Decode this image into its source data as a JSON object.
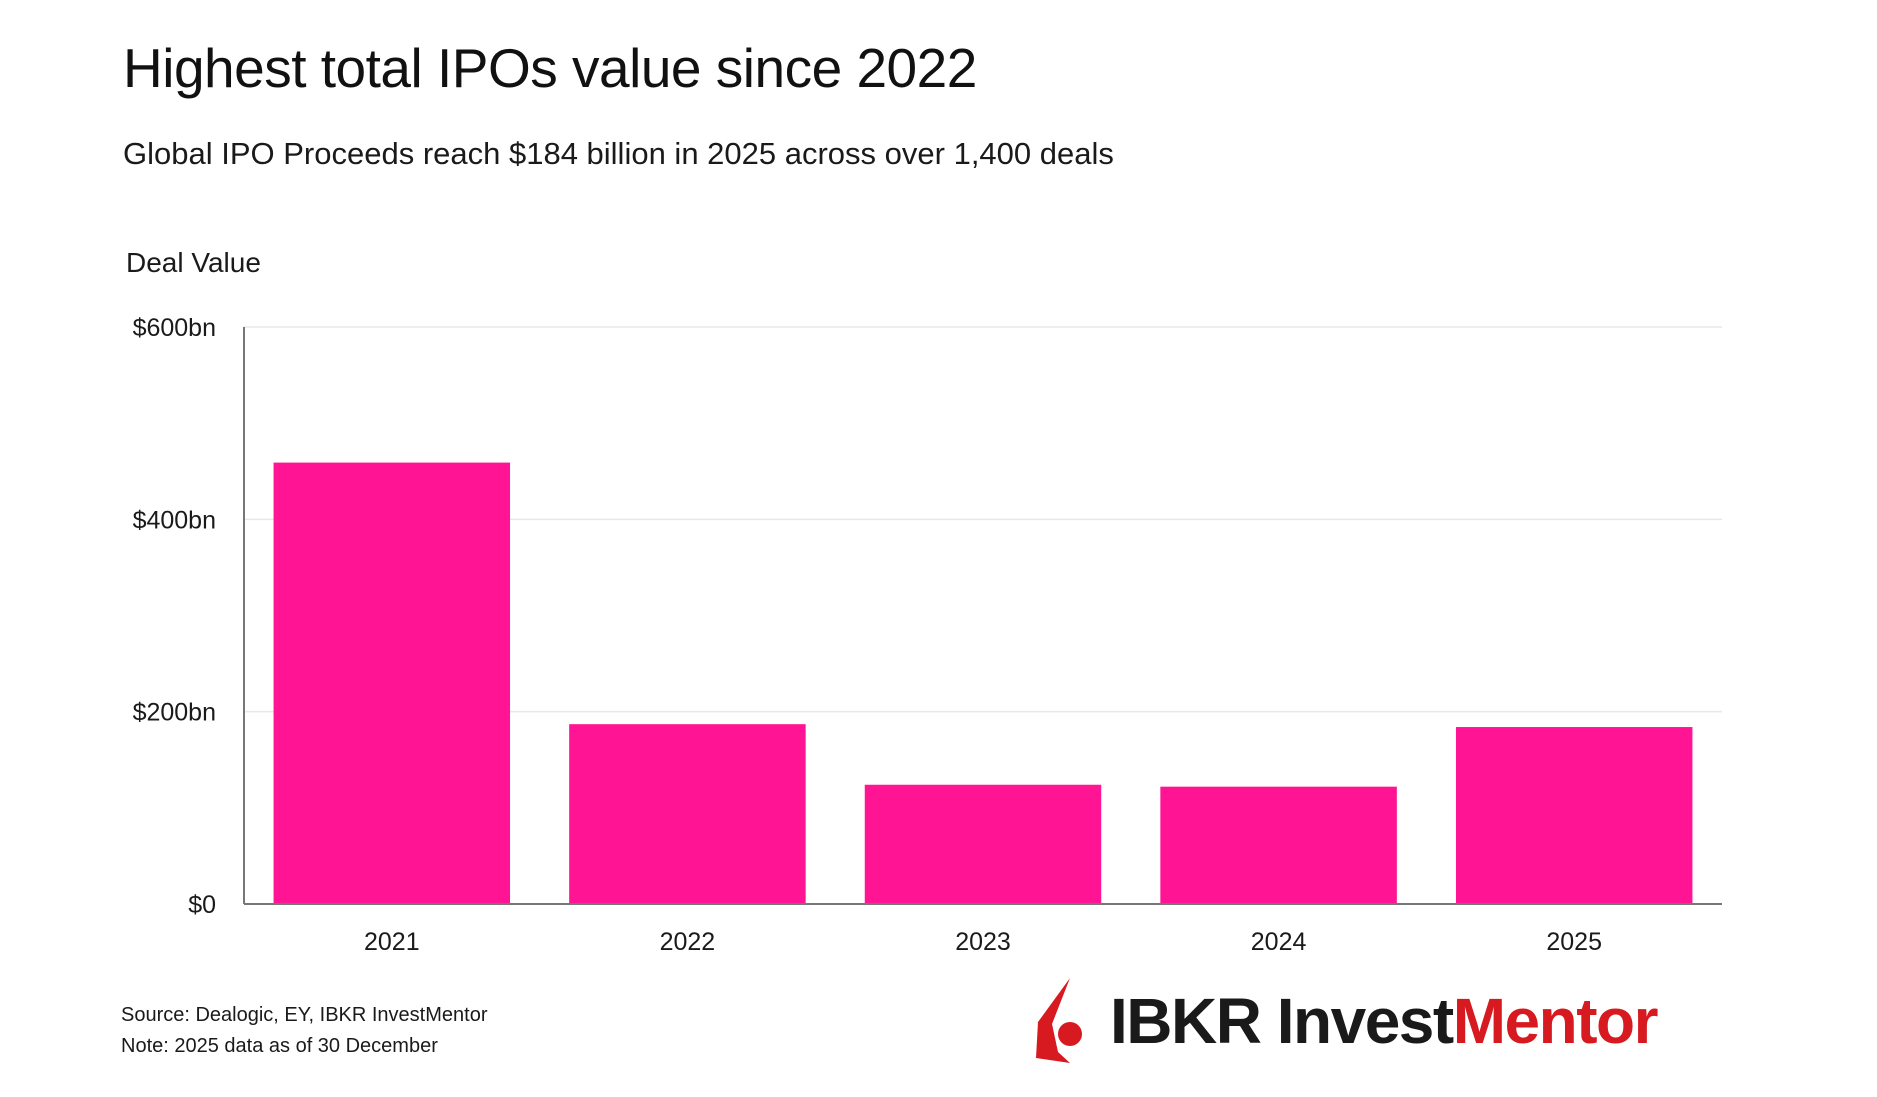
{
  "header": {
    "title": "Highest total IPOs value since 2022",
    "subtitle": "Global IPO Proceeds reach $184 billion in 2025 across over 1,400 deals"
  },
  "chart_data": {
    "type": "bar",
    "categories": [
      "2021",
      "2022",
      "2023",
      "2024",
      "2025"
    ],
    "values": [
      459,
      187,
      124,
      122,
      184
    ],
    "unit": "$bn",
    "title": "Highest total IPOs value since 2022",
    "subtitle": "Global IPO Proceeds reach $184 billion in 2025 across over 1,400 deals",
    "xlabel": "",
    "ylabel": "Deal Value",
    "ylim": [
      0,
      600
    ],
    "yticks": [
      0,
      200,
      400,
      600
    ],
    "ytick_labels": [
      "$0",
      "$200bn",
      "$400bn",
      "$600bn"
    ],
    "grid": true,
    "legend": "none",
    "colors": {
      "bar": "#ff1493",
      "grid": "#e8e8e8",
      "axis": "#777777"
    }
  },
  "footer": {
    "source": "Source: Dealogic, EY, IBKR InvestMentor",
    "note": "Note: 2025 data as of 30 December"
  },
  "logo": {
    "dark_text": "IBKR Invest",
    "red_text": "Mentor",
    "mark_icon": "ibkr-flame-icon",
    "brand_red": "#d71920",
    "brand_dark": "#1a1a1a"
  }
}
